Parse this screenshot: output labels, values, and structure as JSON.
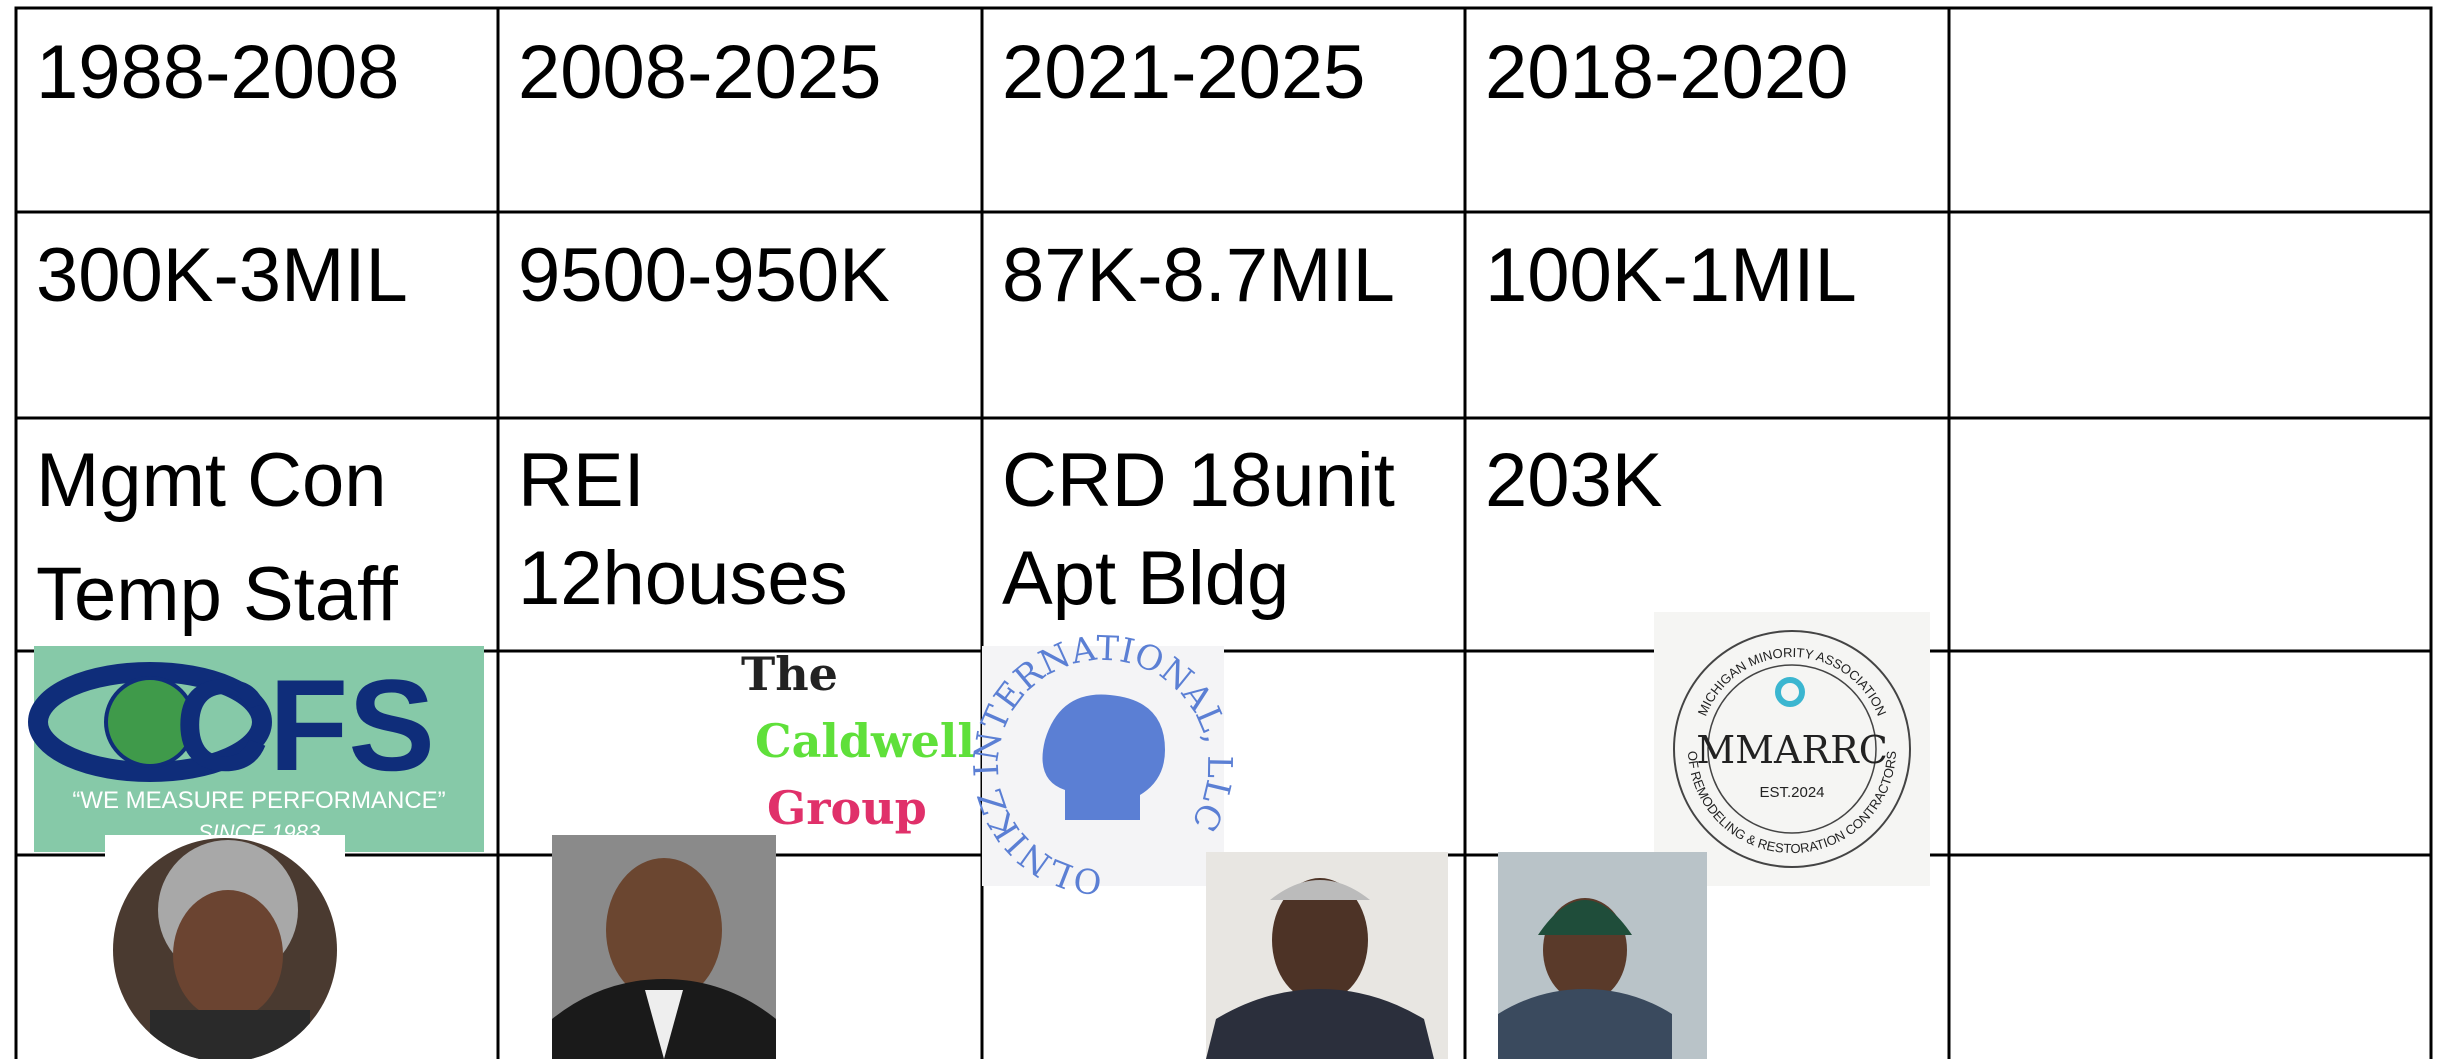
{
  "table": {
    "rows": [
      [
        [
          "1988-2008"
        ],
        [
          "2008-2025"
        ],
        [
          "2021-2025"
        ],
        [
          "2018-2020"
        ]
      ],
      [
        [
          "300K-3MIL"
        ],
        [
          "9500-950K"
        ],
        [
          "87K-8.7MIL"
        ],
        [
          "100K-1MIL"
        ]
      ],
      [
        [
          "Mgmt Con",
          "Temp Staff"
        ],
        [
          "REI",
          "12houses"
        ],
        [
          "CRD 18unit",
          "Apt Bldg"
        ],
        [
          "203K"
        ]
      ]
    ]
  },
  "logos": [
    {
      "name": "CFS",
      "tagline": "“WE MEASURE PERFORMANCE”",
      "since": "SINCE 1983"
    },
    {
      "lines": [
        "The",
        "Caldwell",
        "Group"
      ]
    },
    {
      "arc": "OLNIKZ INTERNATIONAL, LLC"
    },
    {
      "name": "MMARRC",
      "est": "EST.2024",
      "arc_top": "MICHIGAN MINORITY ASSOCIATION",
      "arc_bottom": "OF REMODELING & RESTORATION CONTRACTORS"
    }
  ]
}
